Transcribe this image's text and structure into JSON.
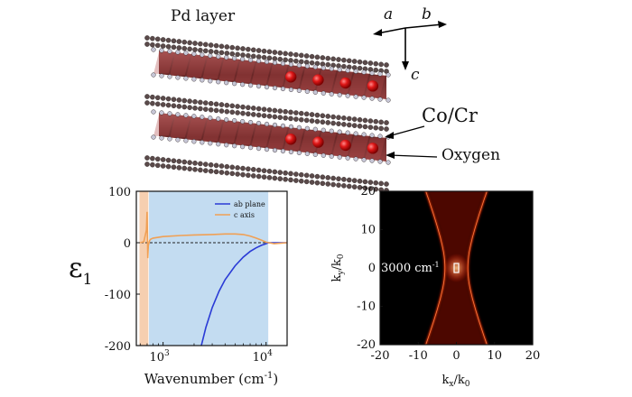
{
  "crystal": {
    "pd_layer_label": "Pd layer",
    "cocr_label": "Co/Cr",
    "oxygen_label": "Oxygen",
    "axes": {
      "a": "a",
      "b": "b",
      "c": "c"
    }
  },
  "colors": {
    "ab_plane": "#2a3bd6",
    "c_axis": "#f0a055",
    "hyperbolic_band_blue": "#c3dcf1",
    "hyperbolic_band_orange": "#f6cfb0",
    "atom_pd": "#5a4a4a",
    "atom_oxygen": "#c6c6d6",
    "atom_cocr": "#d41414",
    "octahedra": "#7a1f1f"
  },
  "chart_data": [
    {
      "type": "line",
      "xscale": "log",
      "xlabel": "Wavenumber (cm",
      "xlabel_sup": "-1",
      "xlabel_tail": ")",
      "ylabel": "ε",
      "ylabel_sub": "1",
      "xlim": [
        550,
        16000
      ],
      "ylim": [
        -200,
        100
      ],
      "xticks": [
        1000,
        10000
      ],
      "xtick_labels": [
        "10",
        "10"
      ],
      "xtick_sups": [
        "3",
        "4"
      ],
      "yticks": [
        100,
        0,
        -100,
        -200
      ],
      "ytick_labels": [
        "100",
        "0",
        "-100",
        "-200"
      ],
      "zero_line": "dashed",
      "shaded_regions": [
        {
          "x": [
            590,
            720
          ],
          "color": "orange"
        },
        {
          "x": [
            730,
            10500
          ],
          "color": "blue"
        }
      ],
      "legend_position": "top-right",
      "series": [
        {
          "name": "ab plane",
          "x": [
            2350,
            2600,
            3000,
            3500,
            4000,
            5000,
            6000,
            7000,
            8000,
            9000,
            10000,
            10500,
            12000,
            16000
          ],
          "y": [
            -200,
            -165,
            -126,
            -94,
            -72,
            -45,
            -28,
            -17,
            -10,
            -5,
            -2,
            0,
            0,
            0
          ]
        },
        {
          "name": "c axis",
          "x": [
            600,
            650,
            690,
            700,
            710,
            720,
            740,
            760,
            800,
            1000,
            1500,
            2000,
            3000,
            4000,
            5000,
            6000,
            7000,
            8000,
            9000,
            10000,
            12000,
            16000
          ],
          "y": [
            0,
            2,
            25,
            60,
            -30,
            -5,
            4,
            7,
            9,
            12,
            14,
            15,
            16,
            17,
            17,
            16,
            13,
            9,
            5,
            1,
            -2,
            0
          ]
        }
      ]
    },
    {
      "type": "heatmap",
      "xlabel": "k",
      "xlabel_sub": "x",
      "xlabel_mid": "/k",
      "xlabel_sub2": "0",
      "ylabel": "k",
      "ylabel_sub": "y",
      "ylabel_mid": "/k",
      "ylabel_sub2": "0",
      "xlim": [
        -20,
        20
      ],
      "ylim": [
        -20,
        20
      ],
      "xticks": [
        -20,
        -10,
        0,
        10,
        20
      ],
      "yticks": [
        20,
        10,
        0,
        -10,
        -20
      ],
      "annotation": "3000 cm",
      "annotation_sup": "-1",
      "cone": {
        "half_width_at_center": 3,
        "half_width_at_edge": 8
      }
    }
  ]
}
